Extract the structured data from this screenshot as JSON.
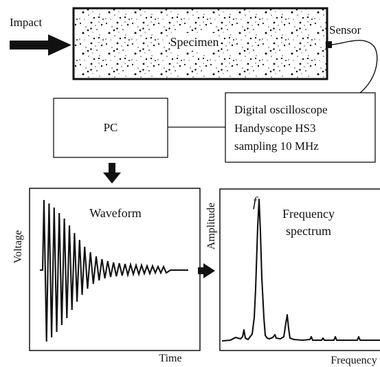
{
  "labels": {
    "impact": "Impact",
    "specimen": "Specimen",
    "sensor": "Sensor",
    "pc": "PC",
    "oscilloscope_lines": [
      "Digital oscilloscope",
      "Handyscope HS3",
      "sampling 10 MHz"
    ],
    "waveform_title": "Waveform",
    "voltage_axis": "Voltage",
    "time_axis": "Time",
    "amplitude_axis": "Amplitude",
    "frequency_axis": "Frequency",
    "spectrum_title_lines": [
      "Frequency",
      "spectrum"
    ],
    "peak_label": "f"
  },
  "colors": {
    "ink": "#111111",
    "background": "#ffffff"
  },
  "icons": {
    "impact_arrow": "right-arrow",
    "pc_to_waveform_arrow": "down-arrow",
    "waveform_to_spectrum_arrow": "right-arrow"
  }
}
